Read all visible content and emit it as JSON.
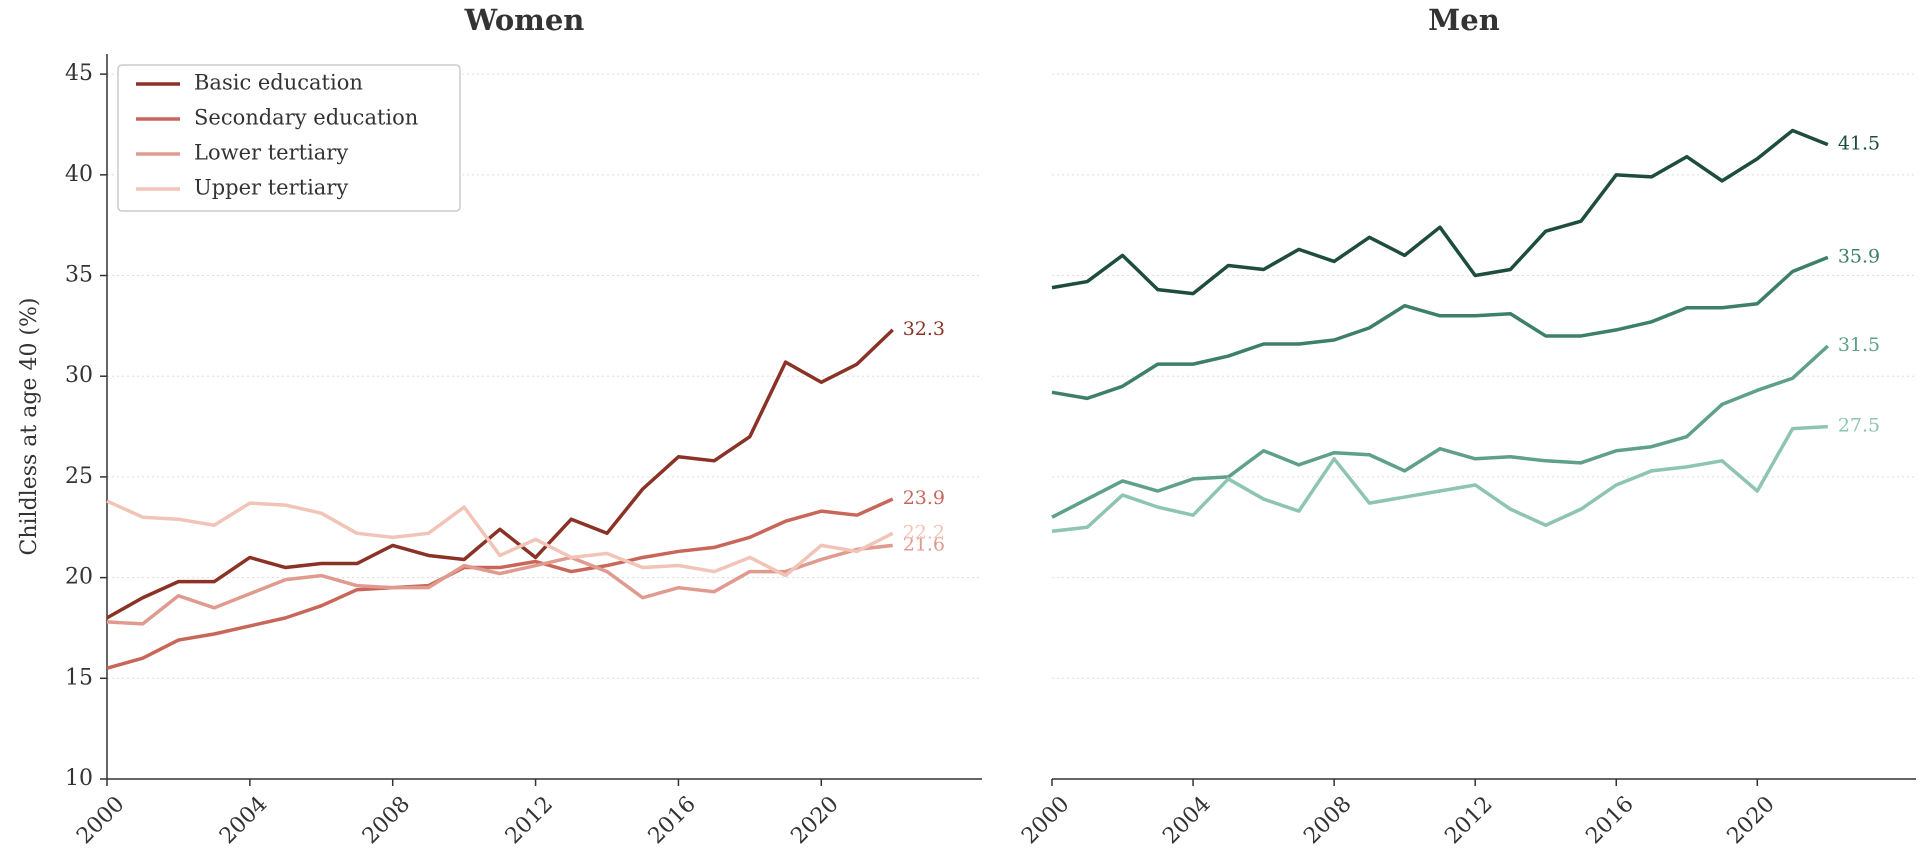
{
  "chart_data": [
    {
      "type": "line",
      "title": "Women",
      "ylabel": "Childless at age 40 (%)",
      "x": [
        2000,
        2001,
        2002,
        2003,
        2004,
        2005,
        2006,
        2007,
        2008,
        2009,
        2010,
        2011,
        2012,
        2013,
        2014,
        2015,
        2016,
        2017,
        2018,
        2019,
        2020,
        2021,
        2022
      ],
      "series": [
        {
          "name": "Basic education",
          "color": "#8b3226",
          "values": [
            18.0,
            19.0,
            19.8,
            19.8,
            21.0,
            20.5,
            20.7,
            20.7,
            21.6,
            21.1,
            20.9,
            22.4,
            21.0,
            22.9,
            22.2,
            24.4,
            26.0,
            25.8,
            27.0,
            30.7,
            29.7,
            30.6,
            32.3
          ]
        },
        {
          "name": "Secondary education",
          "color": "#c8665a",
          "values": [
            15.5,
            16.0,
            16.9,
            17.2,
            17.6,
            18.0,
            18.6,
            19.4,
            19.5,
            19.6,
            20.5,
            20.5,
            20.8,
            20.3,
            20.6,
            21.0,
            21.3,
            21.5,
            22.0,
            22.8,
            23.3,
            23.1,
            23.9
          ]
        },
        {
          "name": "Lower tertiary",
          "color": "#e09a8e",
          "values": [
            17.8,
            17.7,
            19.1,
            18.5,
            19.2,
            19.9,
            20.1,
            19.6,
            19.5,
            19.5,
            20.6,
            20.2,
            20.6,
            21.0,
            20.3,
            19.0,
            19.5,
            19.3,
            20.3,
            20.3,
            20.9,
            21.4,
            21.6
          ]
        },
        {
          "name": "Upper tertiary",
          "color": "#f2c4b8",
          "values": [
            23.8,
            23.0,
            22.9,
            22.6,
            23.7,
            23.6,
            23.2,
            22.2,
            22.0,
            22.2,
            23.5,
            21.1,
            21.9,
            21.0,
            21.2,
            20.5,
            20.6,
            20.3,
            21.0,
            20.1,
            21.6,
            21.3,
            22.2
          ]
        }
      ],
      "xlim": [
        2000,
        2024.5
      ],
      "xticks": [
        2000,
        2004,
        2008,
        2012,
        2016,
        2020
      ],
      "ylim": [
        10,
        46
      ],
      "yticks": [
        10,
        15,
        20,
        25,
        30,
        35,
        40,
        45
      ],
      "grid": true,
      "legend": "upper left"
    },
    {
      "type": "line",
      "title": "Men",
      "x": [
        2000,
        2001,
        2002,
        2003,
        2004,
        2005,
        2006,
        2007,
        2008,
        2009,
        2010,
        2011,
        2012,
        2013,
        2014,
        2015,
        2016,
        2017,
        2018,
        2019,
        2020,
        2021,
        2022
      ],
      "series": [
        {
          "color": "#1e4d3c",
          "values": [
            34.4,
            34.7,
            36.0,
            34.3,
            34.1,
            35.5,
            35.3,
            36.3,
            35.7,
            36.9,
            36.0,
            37.4,
            35.0,
            35.3,
            37.2,
            37.7,
            40.0,
            39.9,
            40.9,
            39.7,
            40.8,
            42.2,
            41.5
          ]
        },
        {
          "color": "#3d7f68",
          "values": [
            29.2,
            28.9,
            29.5,
            30.6,
            30.6,
            31.0,
            31.6,
            31.6,
            31.8,
            32.4,
            33.5,
            33.0,
            33.0,
            33.1,
            32.0,
            32.0,
            32.3,
            32.7,
            33.4,
            33.4,
            33.6,
            35.2,
            35.9
          ]
        },
        {
          "color": "#5fa08a",
          "values": [
            23.0,
            23.9,
            24.8,
            24.3,
            24.9,
            25.0,
            26.3,
            25.6,
            26.2,
            26.1,
            25.3,
            26.4,
            25.9,
            26.0,
            25.8,
            25.7,
            26.3,
            26.5,
            27.0,
            28.6,
            29.3,
            29.9,
            31.5
          ]
        },
        {
          "color": "#8ec4b2",
          "values": [
            22.3,
            22.5,
            24.1,
            23.5,
            23.1,
            24.9,
            23.9,
            23.3,
            25.9,
            23.7,
            24.0,
            24.3,
            24.6,
            23.4,
            22.6,
            23.4,
            24.6,
            25.3,
            25.5,
            25.8,
            24.3,
            27.4,
            27.5
          ]
        }
      ],
      "xlim": [
        2000,
        2024.5
      ],
      "xticks": [
        2000,
        2004,
        2008,
        2012,
        2016,
        2020
      ],
      "ylim": [
        10,
        46
      ],
      "yticks": [
        10,
        15,
        20,
        25,
        30,
        35,
        40,
        45
      ],
      "grid": true,
      "ytick_labels": false
    }
  ]
}
